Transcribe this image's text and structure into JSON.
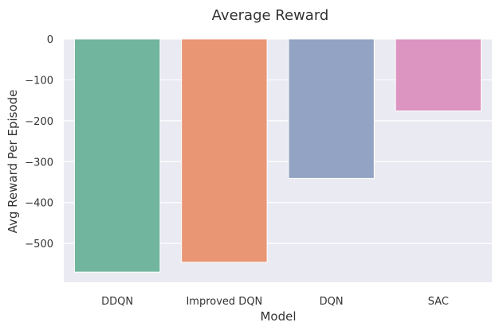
{
  "chart_data": {
    "type": "bar",
    "title": "Average Reward",
    "xlabel": "Model",
    "ylabel": "Avg Reward Per Episode",
    "categories": [
      "DDQN",
      "Improved DQN",
      "DQN",
      "SAC"
    ],
    "values": [
      -570,
      -546,
      -341,
      -176
    ],
    "colors": [
      "#72b59f",
      "#e99675",
      "#93a3c3",
      "#dc94c1"
    ],
    "ylim": [
      -595,
      0
    ],
    "yticks": [
      0,
      -100,
      -200,
      -300,
      -400,
      -500
    ],
    "ytick_labels": [
      "0",
      "−100",
      "−200",
      "−300",
      "−400",
      "−500"
    ],
    "grid": true,
    "background": "#eaeaf2"
  }
}
